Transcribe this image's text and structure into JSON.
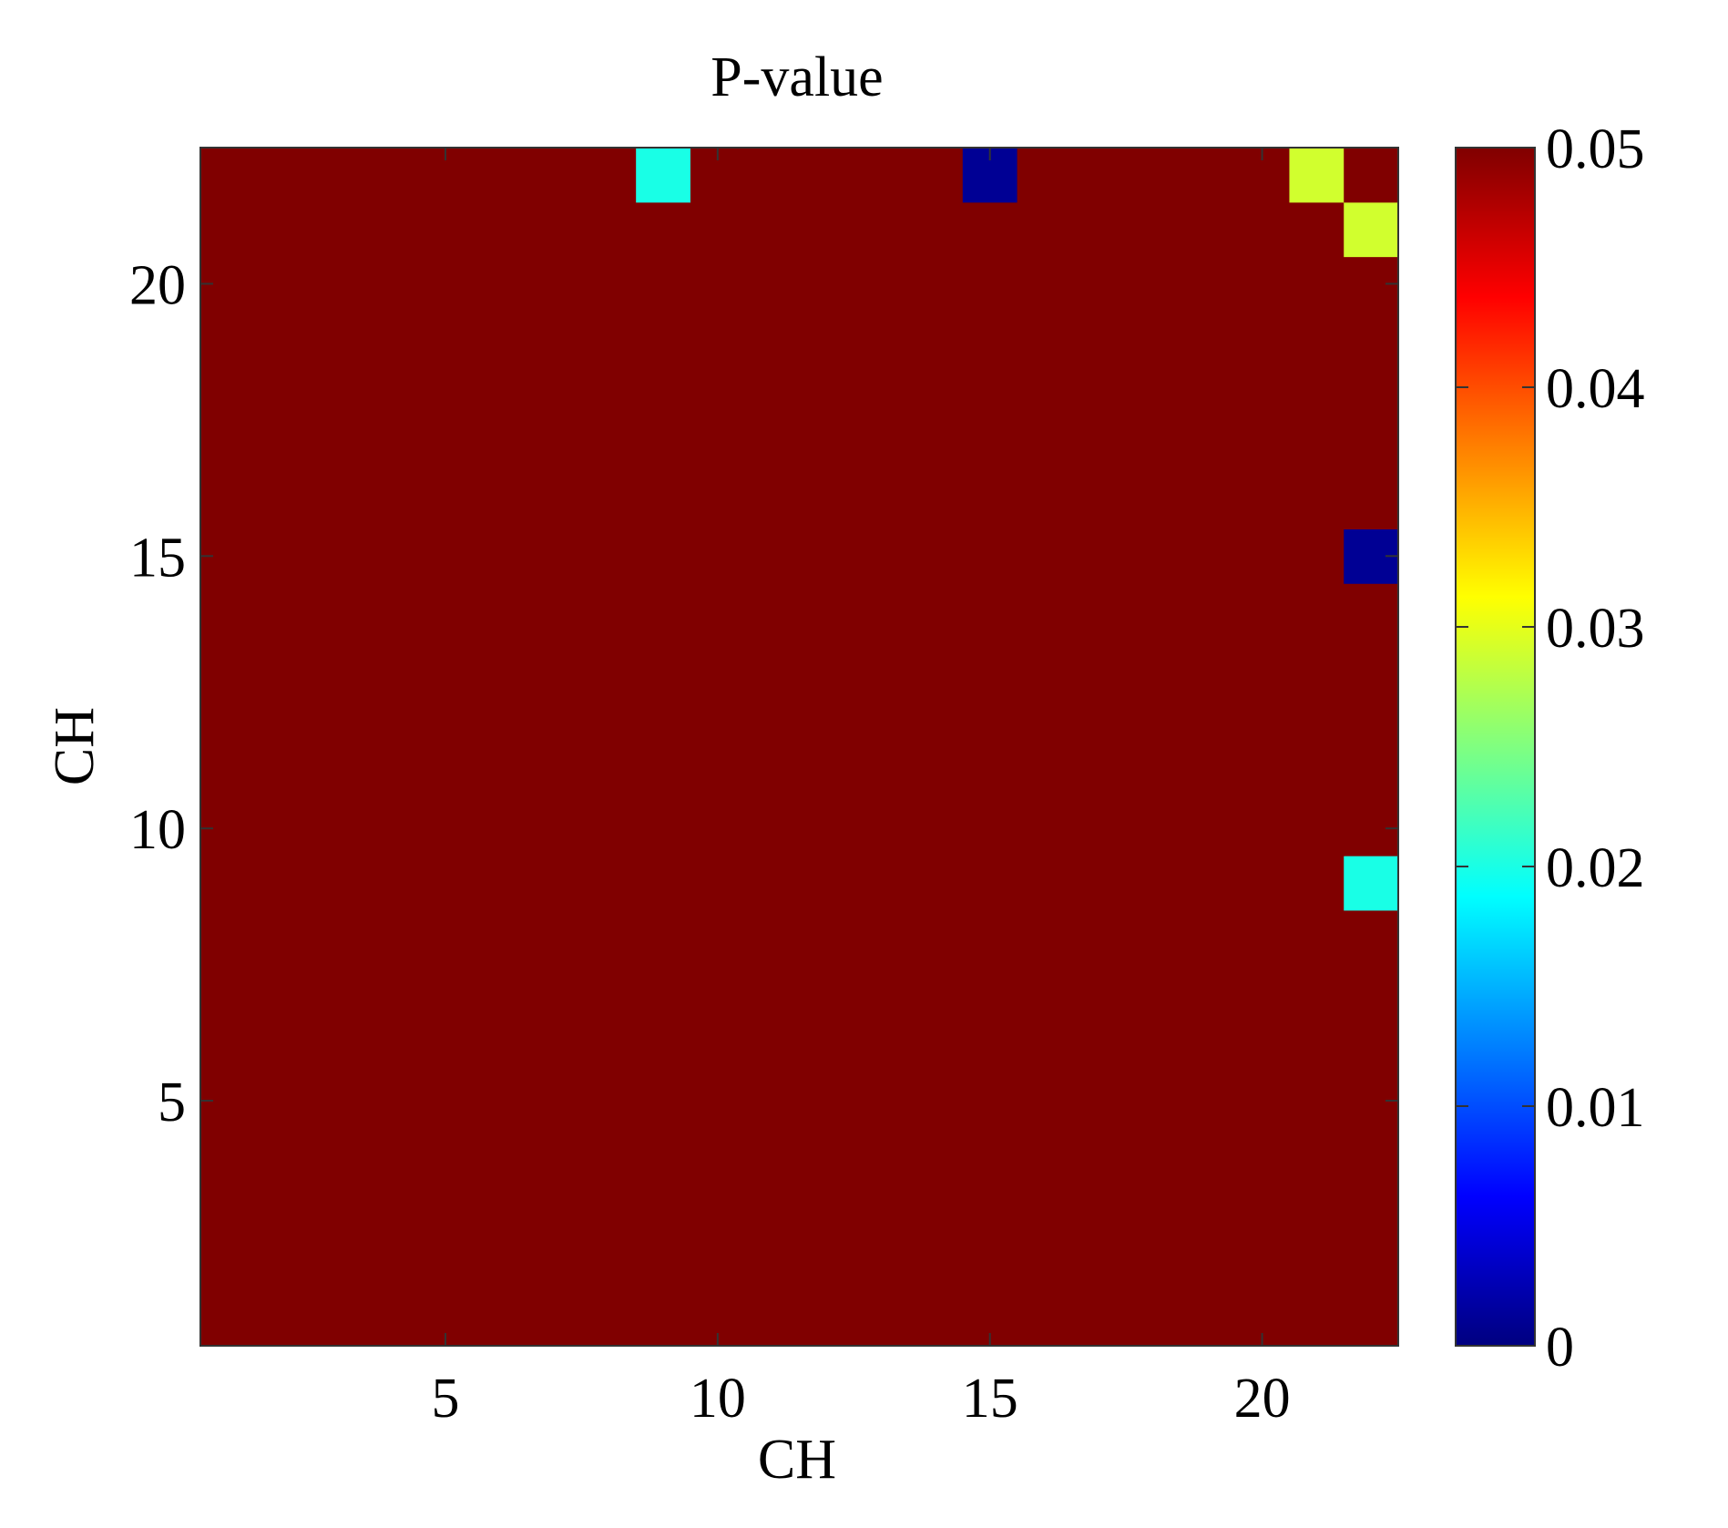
{
  "chart_data": {
    "type": "heatmap",
    "title": "P-value",
    "xlabel": "CH",
    "ylabel": "CH",
    "n_rows": 22,
    "n_cols": 22,
    "xlim": [
      0.5,
      22.5
    ],
    "ylim": [
      0.5,
      22.5
    ],
    "x_ticks": [
      5,
      10,
      15,
      20
    ],
    "y_ticks": [
      5,
      10,
      15,
      20
    ],
    "x_tick_labels": [
      "5",
      "10",
      "15",
      "20"
    ],
    "y_tick_labels": [
      "5",
      "10",
      "15",
      "20"
    ],
    "y_axis_direction": "normal",
    "default_value": 0.05,
    "cells": [
      {
        "x": 9,
        "y": 22,
        "value": 0.02
      },
      {
        "x": 15,
        "y": 22,
        "value": 0.001
      },
      {
        "x": 21,
        "y": 22,
        "value": 0.029
      },
      {
        "x": 22,
        "y": 21,
        "value": 0.029
      },
      {
        "x": 22,
        "y": 15,
        "value": 0.001
      },
      {
        "x": 22,
        "y": 9,
        "value": 0.02
      }
    ],
    "colorbar": {
      "colormap": "jet",
      "range": [
        0,
        0.05
      ],
      "ticks": [
        0,
        0.01,
        0.02,
        0.03,
        0.04,
        0.05
      ],
      "tick_labels": [
        "0",
        "0.01",
        "0.02",
        "0.03",
        "0.04",
        "0.05"
      ]
    },
    "grid": false,
    "legend": "none"
  }
}
